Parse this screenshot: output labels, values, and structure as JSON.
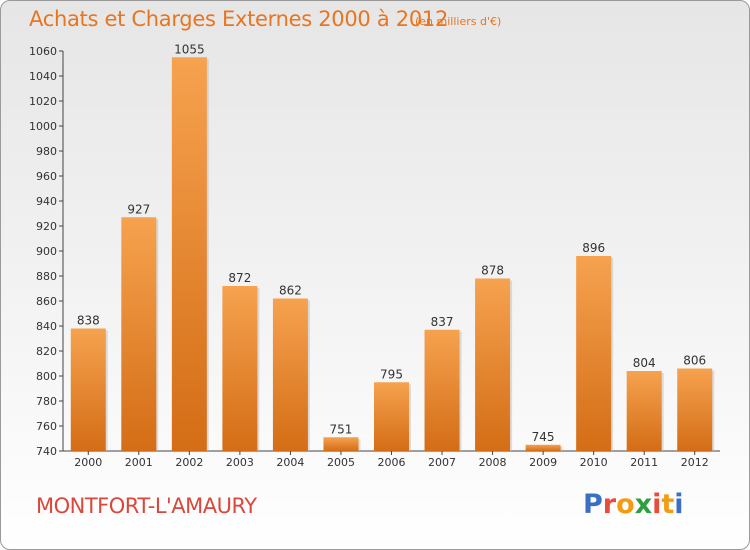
{
  "header": {
    "title": "Achats et Charges Externes 2000 à 2012",
    "subtitle": "(en milliers d'€)"
  },
  "footer": {
    "town": "MONTFORT-L'AMAURY",
    "logo_letters": [
      "P",
      "r",
      "o",
      "x",
      "i",
      "t",
      "i"
    ],
    "logo_colors": [
      "#3b6fc4",
      "#e84c3d",
      "#f39c12",
      "#2e9e3e",
      "#e84c3d",
      "#f39c12",
      "#3b6fc4"
    ]
  },
  "colors": {
    "bar_light": "#f6a24f",
    "bar_dark": "#d46d16",
    "accent": "#e8751f"
  },
  "chart_data": {
    "type": "bar",
    "title": "Achats et Charges Externes 2000 à 2012",
    "subtitle": "(en milliers d'€)",
    "categories": [
      "2000",
      "2001",
      "2002",
      "2003",
      "2004",
      "2005",
      "2006",
      "2007",
      "2008",
      "2009",
      "2010",
      "2011",
      "2012"
    ],
    "values": [
      838,
      927,
      1055,
      872,
      862,
      751,
      795,
      837,
      878,
      745,
      896,
      804,
      806
    ],
    "ylim": [
      740,
      1060
    ],
    "yticks": [
      740,
      760,
      780,
      800,
      820,
      840,
      860,
      880,
      900,
      920,
      940,
      960,
      980,
      1000,
      1020,
      1040,
      1060
    ],
    "grid": false,
    "legend": "none"
  }
}
